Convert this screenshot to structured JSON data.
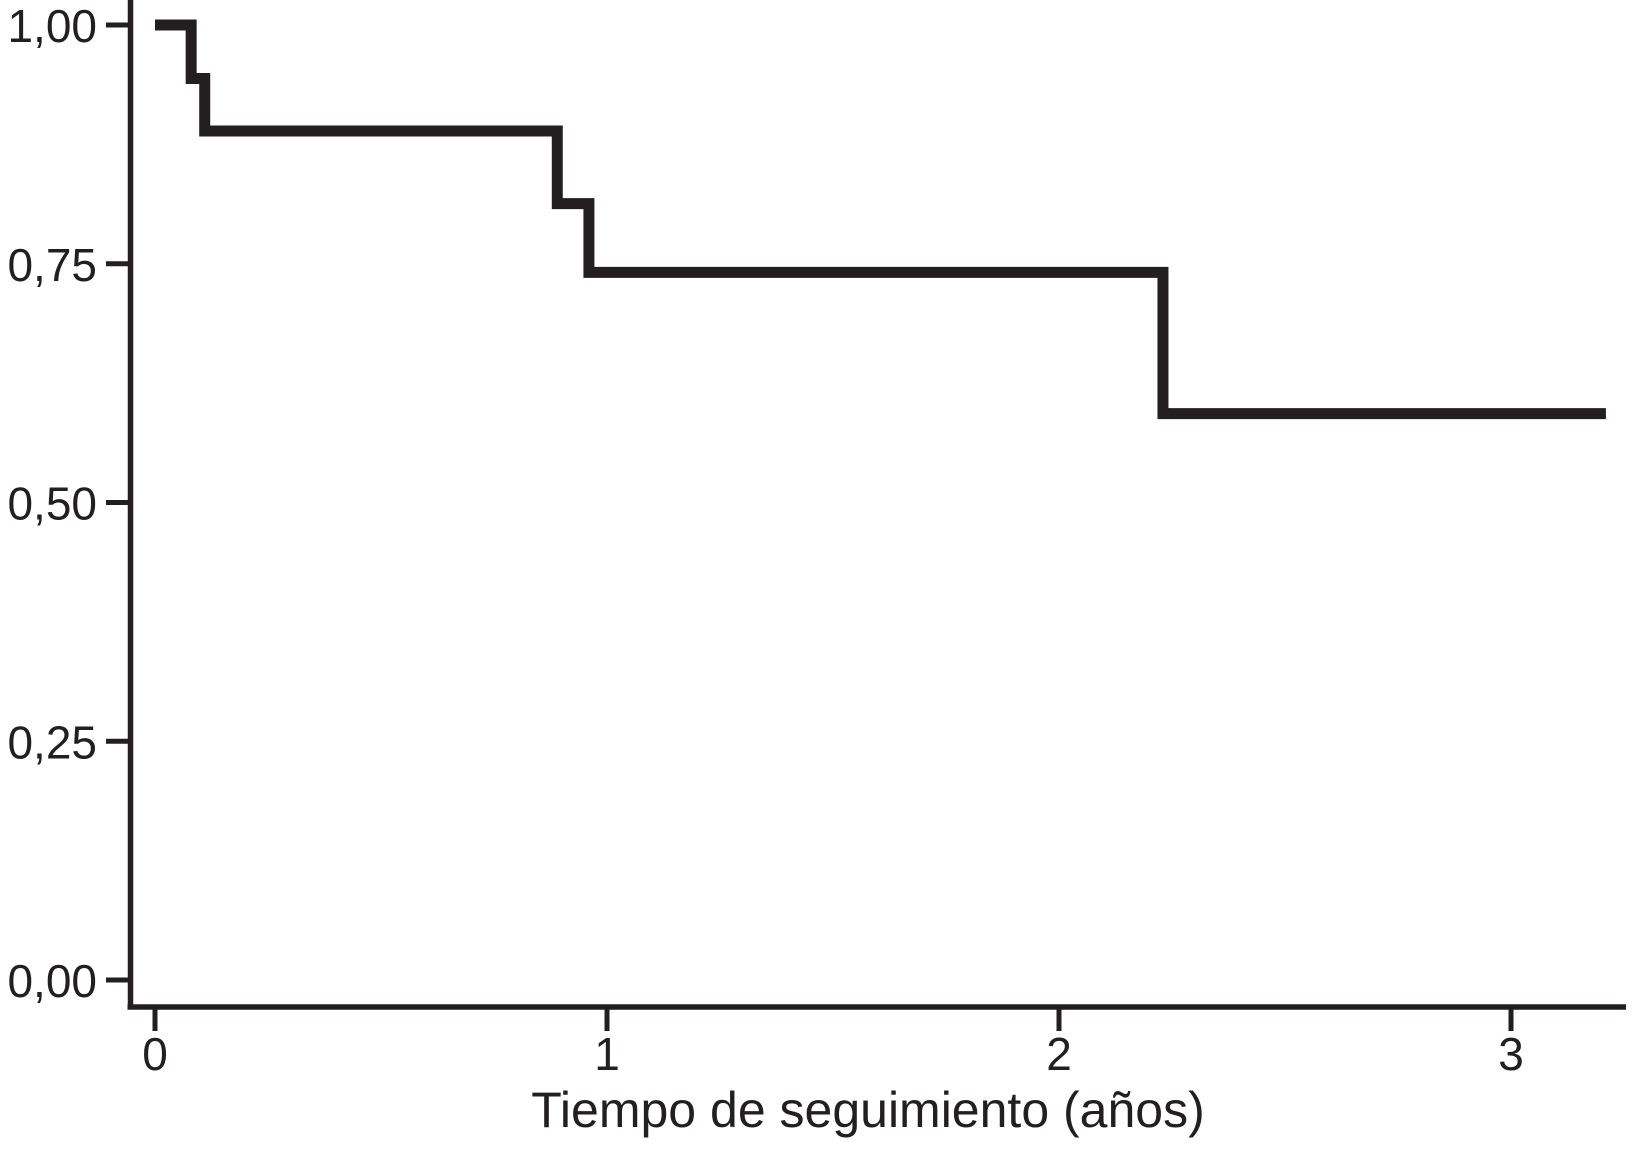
{
  "chart_data": {
    "type": "line",
    "subtype": "kaplan-meier-step-curve",
    "title": "",
    "xlabel": "Tiempo de seguimiento (años)",
    "ylabel": "",
    "xlim": [
      0,
      3.25
    ],
    "ylim": [
      0,
      1.0
    ],
    "grid": false,
    "legend": "none",
    "line_color": "#231f20",
    "background_color": "#ffffff",
    "x_ticks": [
      {
        "label": "0",
        "value": 0
      },
      {
        "label": "1",
        "value": 1
      },
      {
        "label": "2",
        "value": 2
      },
      {
        "label": "3",
        "value": 3
      }
    ],
    "y_ticks": [
      {
        "label": "1,00",
        "value": 1.0
      },
      {
        "label": "0,75",
        "value": 0.75
      },
      {
        "label": "0,50",
        "value": 0.5
      },
      {
        "label": "0,25",
        "value": 0.25
      },
      {
        "label": "0,00",
        "value": 0.0
      }
    ],
    "series": [
      {
        "steps": [
          {
            "t": 0.0,
            "s": 1.0
          },
          {
            "t": 0.08,
            "s": 0.944
          },
          {
            "t": 0.11,
            "s": 0.889
          },
          {
            "t": 0.89,
            "s": 0.813
          },
          {
            "t": 0.96,
            "s": 0.741
          },
          {
            "t": 2.23,
            "s": 0.593
          }
        ],
        "end_t": 3.21
      }
    ]
  }
}
